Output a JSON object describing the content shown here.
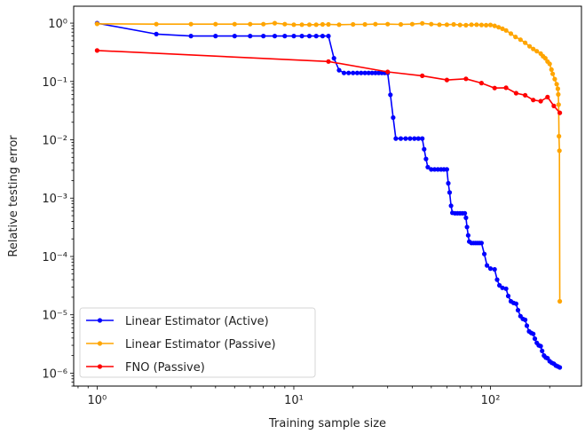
{
  "chart_data": {
    "type": "line",
    "title": "",
    "xlabel": "Training sample size",
    "ylabel": "Relative testing error",
    "xscale": "log",
    "yscale": "log",
    "xlim": [
      0.76,
      290
    ],
    "ylim": [
      6e-07,
      1.95
    ],
    "grid": false,
    "legend_position": "bottom-left",
    "xticks": [
      {
        "value": 1,
        "label": "10⁰"
      },
      {
        "value": 10,
        "label": "10¹"
      },
      {
        "value": 100,
        "label": "10²"
      }
    ],
    "yticks": [
      {
        "value": 1,
        "label": "10⁰"
      },
      {
        "value": 0.1,
        "label": "10⁻¹"
      },
      {
        "value": 0.01,
        "label": "10⁻²"
      },
      {
        "value": 0.001,
        "label": "10⁻³"
      },
      {
        "value": 0.0001,
        "label": "10⁻⁴"
      },
      {
        "value": 1e-05,
        "label": "10⁻⁵"
      },
      {
        "value": 1e-06,
        "label": "10⁻⁶"
      }
    ],
    "series": [
      {
        "name": "Linear Estimator (Active)",
        "color": "#0000ff",
        "points": [
          [
            1,
            1.0
          ],
          [
            2,
            0.65
          ],
          [
            3,
            0.6
          ],
          [
            4,
            0.6
          ],
          [
            5,
            0.6
          ],
          [
            6,
            0.6
          ],
          [
            7,
            0.6
          ],
          [
            8,
            0.6
          ],
          [
            9,
            0.6
          ],
          [
            10,
            0.6
          ],
          [
            11,
            0.6
          ],
          [
            12,
            0.6
          ],
          [
            13,
            0.6
          ],
          [
            14,
            0.6
          ],
          [
            15,
            0.6
          ],
          [
            16,
            0.25
          ],
          [
            17,
            0.156
          ],
          [
            18,
            0.14
          ],
          [
            19,
            0.14
          ],
          [
            20,
            0.14
          ],
          [
            21,
            0.14
          ],
          [
            22,
            0.14
          ],
          [
            23,
            0.14
          ],
          [
            24,
            0.14
          ],
          [
            25,
            0.14
          ],
          [
            26,
            0.14
          ],
          [
            27,
            0.14
          ],
          [
            28,
            0.14
          ],
          [
            29,
            0.14
          ],
          [
            30,
            0.14
          ],
          [
            31,
            0.059
          ],
          [
            32,
            0.024
          ],
          [
            33,
            0.0105
          ],
          [
            35,
            0.0105
          ],
          [
            37,
            0.0105
          ],
          [
            39,
            0.0105
          ],
          [
            41,
            0.0105
          ],
          [
            43,
            0.0105
          ],
          [
            45,
            0.0105
          ],
          [
            46,
            0.0069
          ],
          [
            47,
            0.0047
          ],
          [
            48,
            0.0034
          ],
          [
            50,
            0.0031
          ],
          [
            52,
            0.0031
          ],
          [
            54,
            0.0031
          ],
          [
            56,
            0.0031
          ],
          [
            58,
            0.0031
          ],
          [
            60,
            0.0031
          ],
          [
            61,
            0.0018
          ],
          [
            62,
            0.00125
          ],
          [
            63,
            0.00074
          ],
          [
            64,
            0.00056
          ],
          [
            66,
            0.00055
          ],
          [
            68,
            0.00055
          ],
          [
            70,
            0.00055
          ],
          [
            72,
            0.00055
          ],
          [
            74,
            0.00055
          ],
          [
            75,
            0.00046
          ],
          [
            76,
            0.00032
          ],
          [
            77,
            0.00023
          ],
          [
            78,
            0.00018
          ],
          [
            80,
            0.00017
          ],
          [
            82,
            0.00017
          ],
          [
            84,
            0.00017
          ],
          [
            86,
            0.00017
          ],
          [
            88,
            0.00017
          ],
          [
            90,
            0.00017
          ],
          [
            93,
            0.00011
          ],
          [
            96,
            7e-05
          ],
          [
            100,
            6.2e-05
          ],
          [
            105,
            6e-05
          ],
          [
            108,
            4e-05
          ],
          [
            111,
            3.2e-05
          ],
          [
            115,
            2.9e-05
          ],
          [
            120,
            2.8e-05
          ],
          [
            123,
            2.1e-05
          ],
          [
            127,
            1.7e-05
          ],
          [
            131,
            1.6e-05
          ],
          [
            135,
            1.55e-05
          ],
          [
            138,
            1.2e-05
          ],
          [
            142,
            9.5e-06
          ],
          [
            146,
            8.5e-06
          ],
          [
            150,
            8.2e-06
          ],
          [
            153,
            6.5e-06
          ],
          [
            157,
            5.2e-06
          ],
          [
            161,
            4.9e-06
          ],
          [
            165,
            4.7e-06
          ],
          [
            168,
            3.9e-06
          ],
          [
            172,
            3.3e-06
          ],
          [
            176,
            3e-06
          ],
          [
            180,
            2.9e-06
          ],
          [
            183,
            2.4e-06
          ],
          [
            187,
            2e-06
          ],
          [
            191,
            1.85e-06
          ],
          [
            195,
            1.8e-06
          ],
          [
            200,
            1.6e-06
          ],
          [
            205,
            1.5e-06
          ],
          [
            210,
            1.45e-06
          ],
          [
            215,
            1.35e-06
          ],
          [
            220,
            1.3e-06
          ],
          [
            225,
            1.25e-06
          ]
        ]
      },
      {
        "name": "Linear Estimator (Passive)",
        "color": "#ffa500",
        "points": [
          [
            1,
            0.97
          ],
          [
            2,
            0.96
          ],
          [
            3,
            0.96
          ],
          [
            4,
            0.96
          ],
          [
            5,
            0.96
          ],
          [
            6,
            0.96
          ],
          [
            7,
            0.96
          ],
          [
            8,
            1.0
          ],
          [
            9,
            0.96
          ],
          [
            10,
            0.94
          ],
          [
            11,
            0.94
          ],
          [
            12,
            0.94
          ],
          [
            13,
            0.94
          ],
          [
            14,
            0.95
          ],
          [
            15,
            0.95
          ],
          [
            17,
            0.94
          ],
          [
            20,
            0.95
          ],
          [
            23,
            0.95
          ],
          [
            26,
            0.96
          ],
          [
            30,
            0.96
          ],
          [
            35,
            0.95
          ],
          [
            40,
            0.96
          ],
          [
            45,
            0.99
          ],
          [
            50,
            0.96
          ],
          [
            55,
            0.94
          ],
          [
            60,
            0.94
          ],
          [
            65,
            0.95
          ],
          [
            70,
            0.93
          ],
          [
            75,
            0.92
          ],
          [
            80,
            0.94
          ],
          [
            85,
            0.94
          ],
          [
            90,
            0.93
          ],
          [
            95,
            0.92
          ],
          [
            100,
            0.93
          ],
          [
            105,
            0.9
          ],
          [
            110,
            0.85
          ],
          [
            115,
            0.8
          ],
          [
            120,
            0.75
          ],
          [
            127,
            0.66
          ],
          [
            134,
            0.58
          ],
          [
            142,
            0.52
          ],
          [
            150,
            0.46
          ],
          [
            158,
            0.4
          ],
          [
            165,
            0.36
          ],
          [
            172,
            0.33
          ],
          [
            180,
            0.3
          ],
          [
            185,
            0.27
          ],
          [
            190,
            0.25
          ],
          [
            195,
            0.22
          ],
          [
            200,
            0.2
          ],
          [
            204,
            0.16
          ],
          [
            207,
            0.135
          ],
          [
            212,
            0.11
          ],
          [
            217,
            0.09
          ],
          [
            220,
            0.075
          ],
          [
            221,
            0.06
          ],
          [
            222,
            0.04
          ],
          [
            223,
            0.0115
          ],
          [
            224,
            0.0065
          ],
          [
            225,
            1.7e-05
          ]
        ]
      },
      {
        "name": "FNO (Passive)",
        "color": "#ff0000",
        "points": [
          [
            1,
            0.34
          ],
          [
            15,
            0.22
          ],
          [
            30,
            0.146
          ],
          [
            45,
            0.125
          ],
          [
            60,
            0.106
          ],
          [
            75,
            0.111
          ],
          [
            90,
            0.094
          ],
          [
            105,
            0.077
          ],
          [
            120,
            0.078
          ],
          [
            135,
            0.063
          ],
          [
            150,
            0.058
          ],
          [
            165,
            0.048
          ],
          [
            180,
            0.046
          ],
          [
            195,
            0.054
          ],
          [
            210,
            0.038
          ],
          [
            225,
            0.029
          ]
        ]
      }
    ]
  }
}
